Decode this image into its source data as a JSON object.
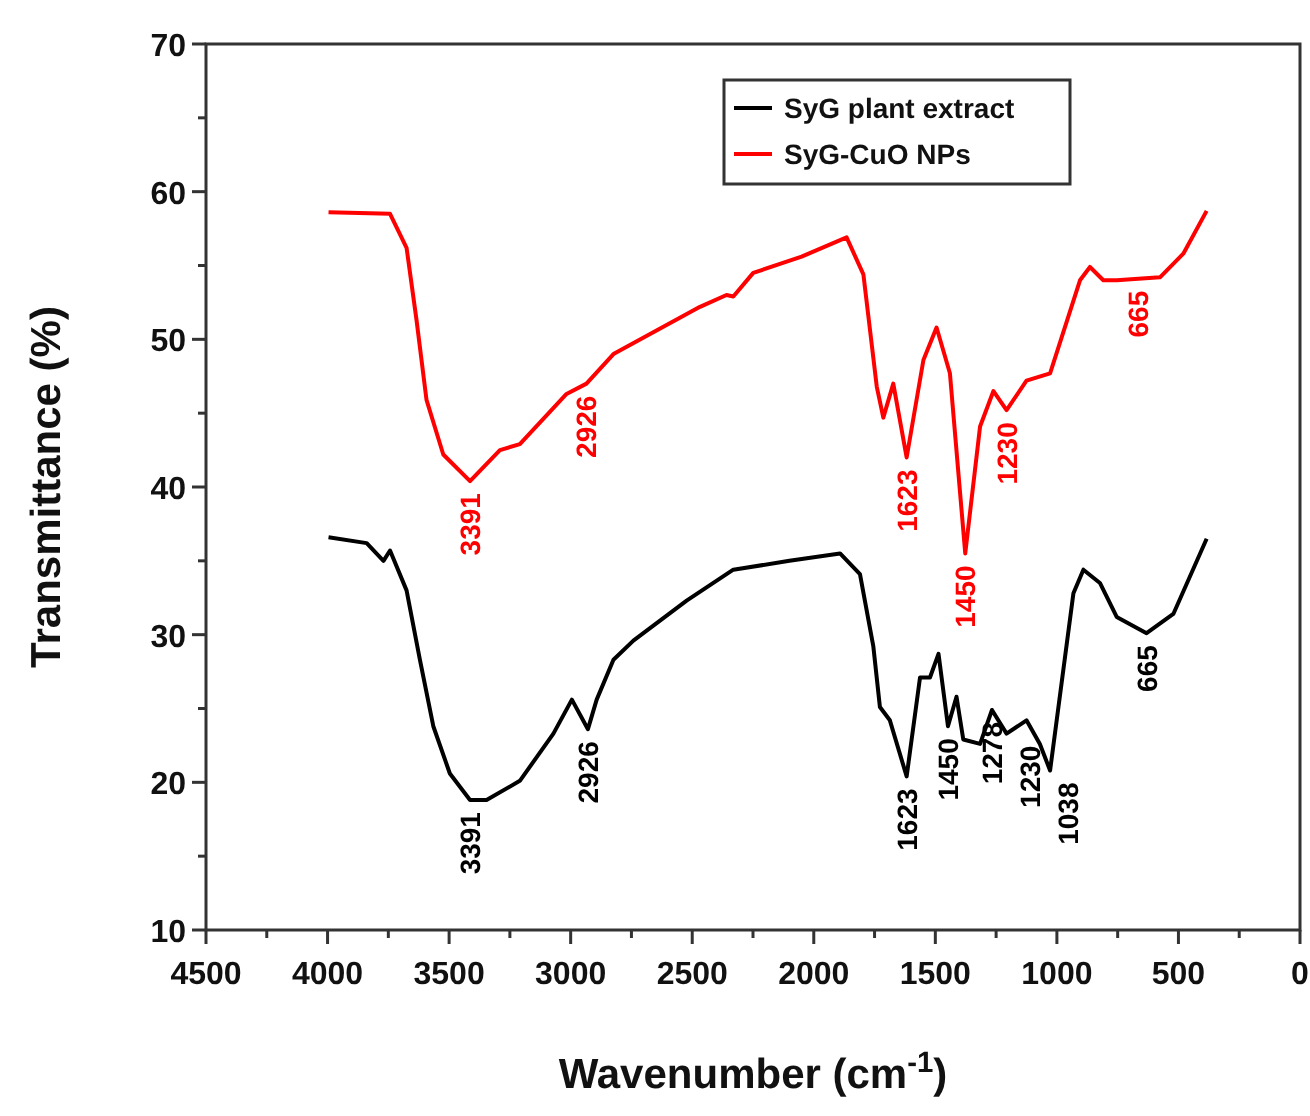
{
  "chart_data": {
    "type": "line",
    "xlabel": "Wavenumber (cm$^{-1}$)",
    "ylabel": "Transmittance (%)",
    "xlim": [
      4500,
      0
    ],
    "ylim": [
      10,
      70
    ],
    "xticks": [
      4500,
      {
        "value": 4250,
        "label": null
      },
      4000,
      {
        "value": 3750,
        "label": null
      },
      3500,
      {
        "value": 3250,
        "label": null
      },
      3000,
      {
        "value": 2750,
        "label": null
      },
      2500,
      {
        "value": 2250,
        "label": null
      },
      2000,
      {
        "value": 1750,
        "label": null
      },
      1500,
      {
        "value": 1250,
        "label": null
      },
      1000,
      {
        "value": 750,
        "label": null
      },
      500,
      {
        "value": 250,
        "label": null
      },
      0
    ],
    "yticks": [
      10,
      {
        "value": 15,
        "label": null
      },
      20,
      {
        "value": 25,
        "label": null
      },
      30,
      {
        "value": 35,
        "label": null
      },
      40,
      {
        "value": 45,
        "label": null
      },
      50,
      {
        "value": 55,
        "label": null
      },
      60,
      {
        "value": 65,
        "label": null
      },
      70
    ],
    "legend": "top right",
    "grid": false,
    "marker": "none",
    "line_style": "solid",
    "series": [
      {
        "name": "SyG plant extract",
        "color": "#000000",
        "x": [
          3996,
          3839,
          3770,
          3743,
          3675,
          3620,
          3565,
          3497,
          3414,
          3346,
          3209,
          3071,
          2995,
          2929,
          2893,
          2824,
          2742,
          2523,
          2331,
          2100,
          1892,
          1810,
          1755,
          1728,
          1687,
          1618,
          1563,
          1522,
          1487,
          1448,
          1413,
          1385,
          1316,
          1267,
          1207,
          1125,
          1070,
          1028,
          932,
          891,
          823,
          754,
          631,
          521,
          384
        ],
        "values": [
          36.6,
          36.2,
          35.0,
          35.7,
          33.0,
          28.3,
          23.8,
          20.6,
          18.8,
          18.8,
          20.1,
          23.3,
          25.6,
          23.6,
          25.6,
          28.3,
          29.6,
          32.3,
          34.4,
          35.0,
          35.5,
          34.1,
          29.2,
          25.1,
          24.2,
          20.4,
          27.1,
          27.1,
          28.7,
          23.8,
          25.8,
          22.9,
          22.6,
          24.9,
          23.3,
          24.2,
          22.6,
          20.8,
          32.8,
          34.4,
          33.5,
          31.2,
          30.1,
          31.4,
          36.5
        ]
      },
      {
        "name": "SyG-CuO NPs",
        "color": "#ff0000",
        "x": [
          3996,
          3743,
          3675,
          3634,
          3593,
          3524,
          3414,
          3291,
          3209,
          3017,
          2935,
          2824,
          2468,
          2359,
          2331,
          2249,
          2050,
          1865,
          1796,
          1741,
          1714,
          1673,
          1618,
          1549,
          1495,
          1440,
          1377,
          1316,
          1261,
          1207,
          1125,
          1028,
          905,
          864,
          809,
          754,
          665,
          576,
          480,
          384
        ],
        "values": [
          58.6,
          58.5,
          56.2,
          51.3,
          45.9,
          42.2,
          40.4,
          42.5,
          42.9,
          46.3,
          47.0,
          49.0,
          52.2,
          53.0,
          52.9,
          54.5,
          55.6,
          56.9,
          54.4,
          46.8,
          44.7,
          47.0,
          42.0,
          48.6,
          50.8,
          47.7,
          35.5,
          44.1,
          46.5,
          45.2,
          47.2,
          47.7,
          54.0,
          54.9,
          54.0,
          54.0,
          54.1,
          54.2,
          55.8,
          58.7
        ]
      }
    ],
    "annotations": [
      {
        "text": "3391",
        "x": 3414,
        "y": 18.8
      },
      {
        "text": "2926",
        "x": 2929,
        "y": 23.6
      },
      {
        "text": "1623",
        "x": 1618,
        "y": 20.4
      },
      {
        "text": "1450",
        "x": 1448,
        "y": 23.8
      },
      {
        "text": "1278",
        "x": 1267,
        "y": 24.9
      },
      {
        "text": "1230",
        "x": 1207,
        "y": 23.3
      },
      {
        "text": "1038",
        "x": 1028,
        "y": 20.8
      },
      {
        "text": "665",
        "x": 631,
        "y": 30.1
      },
      {
        "text": "3391",
        "x": 3414,
        "y": 40.4
      },
      {
        "text": "2926",
        "x": 2935,
        "y": 47.0
      },
      {
        "text": "1623",
        "x": 1618,
        "y": 42.0
      },
      {
        "text": "1450",
        "x": 1377,
        "y": 35.5
      },
      {
        "text": "1230",
        "x": 1207,
        "y": 45.2
      },
      {
        "text": "665",
        "x": 665,
        "y": 54.1
      }
    ]
  }
}
